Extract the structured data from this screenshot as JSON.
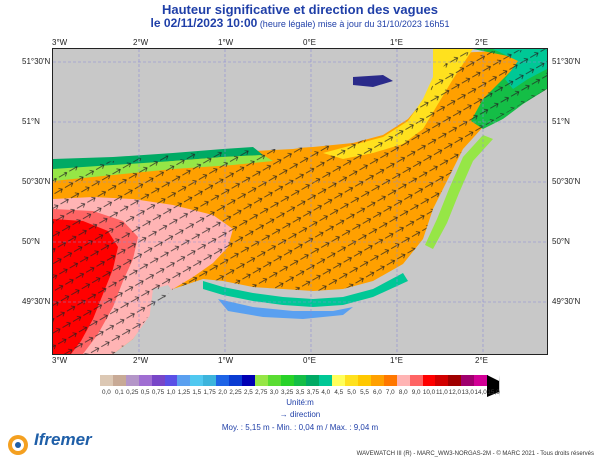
{
  "title": "Hauteur significative et direction des vagues",
  "subtitle_main": "le 02/11/2023 10:00",
  "subtitle_small": " (heure légale) mise à jour du 31/10/2023 16h51",
  "axes": {
    "lon_labels": [
      "3°W",
      "2°W",
      "1°W",
      "0°E",
      "1°E",
      "2°E"
    ],
    "lat_labels": [
      "51°30'N",
      "51°N",
      "50°30'N",
      "50°N",
      "49°30'N"
    ]
  },
  "legend": {
    "values": [
      "0,0",
      "0,1",
      "0,25",
      "0,5",
      "0,75",
      "1,0",
      "1,25",
      "1,5",
      "1,75",
      "2,0",
      "2,25",
      "2,5",
      "2,75",
      "3,0",
      "3,25",
      "3,5",
      "3,75",
      "4,0",
      "4,5",
      "5,0",
      "5,5",
      "6,0",
      "7,0",
      "8,0",
      "9,0",
      "10,0",
      "11,0",
      "12,0",
      "13,0",
      "14,0",
      "15,0"
    ],
    "colors": [
      "#dcc8b4",
      "#c8aa96",
      "#b496c8",
      "#a06ed2",
      "#7846c8",
      "#5a50e6",
      "#5aa0f0",
      "#50c8f0",
      "#3cb4dc",
      "#1e64e6",
      "#0a3cd2",
      "#0000b4",
      "#96e646",
      "#5adc32",
      "#28d228",
      "#14be46",
      "#00aa64",
      "#00c896",
      "#ffff5a",
      "#ffe11e",
      "#ffc800",
      "#ffa000",
      "#ff7800",
      "#ffb4b4",
      "#ff6464",
      "#ff0000",
      "#d20000",
      "#a00000",
      "#a0006e",
      "#d20096",
      "#000000"
    ],
    "unit": "Unité:m",
    "direction_label": "→ direction"
  },
  "stats": "Moy. : 5,15 m   -   Min. : 0,04 m / Max. : 9,04 m",
  "credit": "WAVEWATCH III (R) - MARC_WW3-NORGAS-2M - © MARC 2021 - Tous droits réservés",
  "logo_text": "Ifremer",
  "map_data": {
    "region": "English Channel (Manche)",
    "mean_m": 5.15,
    "min_m": 0.04,
    "max_m": 9.04,
    "wave_direction": "towards north-east"
  }
}
